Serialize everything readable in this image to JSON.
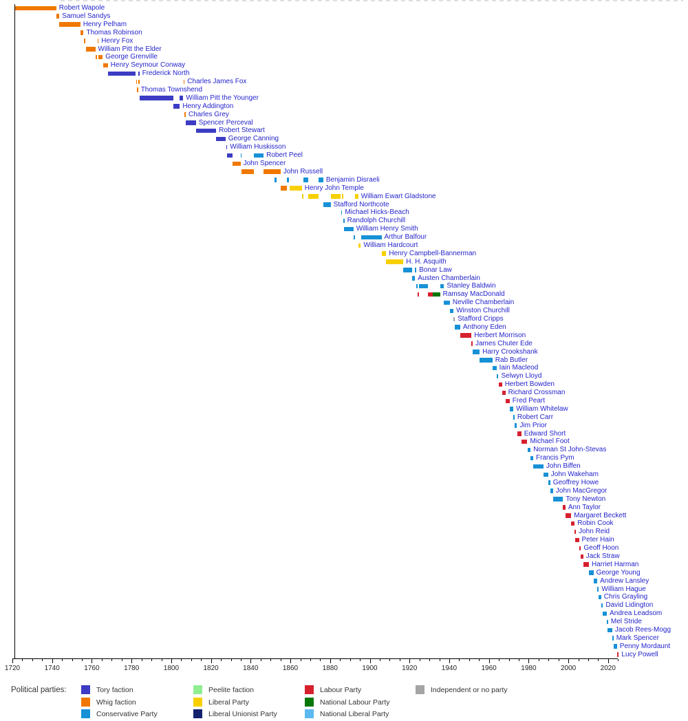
{
  "legend": {
    "title": "Political parties:",
    "columns": [
      [
        "tory",
        "whig",
        "con"
      ],
      [
        "peel",
        "lib",
        "libu"
      ],
      [
        "lab",
        "nlab",
        "nlib"
      ],
      [
        "ind"
      ]
    ]
  },
  "chart_data": {
    "type": "gantt",
    "title": "",
    "x_axis": {
      "start": 1720,
      "end": 2025,
      "minor_step": 5,
      "major_step": 20,
      "tick_labels": [
        "1720",
        "1740",
        "1760",
        "1780",
        "1800",
        "1820",
        "1840",
        "1860",
        "1880",
        "1900",
        "1920",
        "1940",
        "1960",
        "1980",
        "2000",
        "2020"
      ]
    },
    "parties": {
      "tory": {
        "label": "Tory faction",
        "color": "#3C3CC4"
      },
      "whig": {
        "label": "Whig faction",
        "color": "#F07800"
      },
      "con": {
        "label": "Conservative Party",
        "color": "#1791D6"
      },
      "peel": {
        "label": "Peelite faction",
        "color": "#90EE90"
      },
      "lib": {
        "label": "Liberal Party",
        "color": "#F8D000"
      },
      "libu": {
        "label": "Liberal Unionist Party",
        "color": "#14226E"
      },
      "lab": {
        "label": "Labour Party",
        "color": "#D7202E"
      },
      "nlab": {
        "label": "National Labour Party",
        "color": "#067806"
      },
      "nlib": {
        "label": "National Liberal Party",
        "color": "#5CB9F0"
      },
      "ind": {
        "label": "Independent or no party",
        "color": "#A4A4A4"
      }
    },
    "leaders": [
      {
        "name": "Robert Wapole",
        "terms": [
          [
            1721.15,
            1742.1,
            "whig"
          ]
        ]
      },
      {
        "name": "Samuel Sandys",
        "terms": [
          [
            1742.1,
            1743.65,
            "whig"
          ]
        ]
      },
      {
        "name": "Henry Pelham",
        "terms": [
          [
            1743.65,
            1754.2,
            "whig"
          ]
        ]
      },
      {
        "name": "Thomas Robinson",
        "terms": [
          [
            1754.25,
            1755.85,
            "whig"
          ]
        ]
      },
      {
        "name": "Henry Fox",
        "terms": [
          [
            1755.85,
            1756.85,
            "whig"
          ],
          [
            1762.8,
            1763.3,
            "whig"
          ]
        ]
      },
      {
        "name": "William Pitt the Elder",
        "terms": [
          [
            1756.9,
            1761.75,
            "whig"
          ]
        ]
      },
      {
        "name": "George Grenville",
        "terms": [
          [
            1761.8,
            1762.8,
            "whig"
          ],
          [
            1763.3,
            1765.5,
            "whig"
          ]
        ]
      },
      {
        "name": "Henry Seymour Conway",
        "terms": [
          [
            1765.55,
            1768.1,
            "whig"
          ]
        ]
      },
      {
        "name": "Frederick North",
        "terms": [
          [
            1768.1,
            1782.2,
            "tory"
          ],
          [
            1783.3,
            1783.95,
            "tory"
          ]
        ]
      },
      {
        "name": "Charles James Fox",
        "terms": [
          [
            1782.25,
            1782.55,
            "whig"
          ],
          [
            1783.3,
            1783.95,
            "whig"
          ],
          [
            1806.1,
            1806.7,
            "whig"
          ]
        ]
      },
      {
        "name": "Thomas Townshend",
        "terms": [
          [
            1782.55,
            1783.3,
            "whig"
          ]
        ]
      },
      {
        "name": "William Pitt the Younger",
        "terms": [
          [
            1783.95,
            1801.15,
            "tory"
          ],
          [
            1804.35,
            1806.05,
            "tory"
          ]
        ]
      },
      {
        "name": "Henry Addington",
        "terms": [
          [
            1801.15,
            1804.35,
            "tory"
          ]
        ]
      },
      {
        "name": "Charles Grey",
        "terms": [
          [
            1806.7,
            1807.25,
            "whig"
          ]
        ]
      },
      {
        "name": "Spencer Perceval",
        "terms": [
          [
            1807.25,
            1812.4,
            "tory"
          ]
        ]
      },
      {
        "name": "Robert Stewart",
        "terms": [
          [
            1812.4,
            1822.6,
            "tory"
          ]
        ]
      },
      {
        "name": "George Canning",
        "terms": [
          [
            1822.7,
            1827.3,
            "tory"
          ]
        ]
      },
      {
        "name": "William Huskisson",
        "terms": [
          [
            1827.6,
            1828.1,
            "tory"
          ]
        ]
      },
      {
        "name": "Robert Peel",
        "terms": [
          [
            1828.1,
            1830.9,
            "tory"
          ],
          [
            1834.9,
            1835.3,
            "con"
          ],
          [
            1841.65,
            1846.5,
            "con"
          ]
        ]
      },
      {
        "name": "John Spencer",
        "terms": [
          [
            1830.9,
            1834.9,
            "whig"
          ]
        ]
      },
      {
        "name": "John Russell",
        "terms": [
          [
            1835.3,
            1841.65,
            "whig"
          ],
          [
            1846.5,
            1855.1,
            "whig"
          ]
        ]
      },
      {
        "name": "Benjamin Disraeli",
        "terms": [
          [
            1852.15,
            1852.95,
            "con"
          ],
          [
            1858.15,
            1859.45,
            "con"
          ],
          [
            1866.5,
            1868.9,
            "con"
          ],
          [
            1874.15,
            1876.6,
            "con"
          ]
        ]
      },
      {
        "name": "Henry John Temple",
        "terms": [
          [
            1855.1,
            1858.15,
            "whig"
          ],
          [
            1859.45,
            1865.8,
            "lib"
          ]
        ]
      },
      {
        "name": "William Ewart Gladstone",
        "terms": [
          [
            1865.85,
            1866.5,
            "lib"
          ],
          [
            1868.9,
            1874.1,
            "lib"
          ],
          [
            1880.3,
            1885.45,
            "lib"
          ],
          [
            1886.1,
            1886.55,
            "lib"
          ],
          [
            1892.6,
            1894.2,
            "lib"
          ]
        ]
      },
      {
        "name": "Stafford Northcote",
        "terms": [
          [
            1876.6,
            1880.3,
            "con"
          ]
        ]
      },
      {
        "name": "Michael Hicks-Beach",
        "terms": [
          [
            1885.45,
            1886.1,
            "con"
          ]
        ]
      },
      {
        "name": "Randolph Churchill",
        "terms": [
          [
            1886.6,
            1887.0,
            "con"
          ]
        ]
      },
      {
        "name": "William Henry Smith",
        "terms": [
          [
            1887.0,
            1891.75,
            "con"
          ]
        ]
      },
      {
        "name": "Arthur Balfour",
        "terms": [
          [
            1891.8,
            1892.6,
            "con"
          ],
          [
            1895.5,
            1905.9,
            "con"
          ]
        ]
      },
      {
        "name": "William Hardcourt",
        "terms": [
          [
            1894.2,
            1895.5,
            "lib"
          ]
        ]
      },
      {
        "name": "Henry Campbell-Bannerman",
        "terms": [
          [
            1905.9,
            1908.3,
            "lib"
          ]
        ]
      },
      {
        "name": "H. H. Asquith",
        "terms": [
          [
            1908.3,
            1916.9,
            "lib"
          ]
        ]
      },
      {
        "name": "Bonar Law",
        "terms": [
          [
            1916.9,
            1921.2,
            "con"
          ],
          [
            1922.8,
            1923.4,
            "con"
          ]
        ]
      },
      {
        "name": "Austen Chamberlain",
        "terms": [
          [
            1921.2,
            1922.8,
            "con"
          ]
        ]
      },
      {
        "name": "Stanley Baldwin",
        "terms": [
          [
            1923.4,
            1924.05,
            "con"
          ],
          [
            1924.85,
            1929.4,
            "con"
          ],
          [
            1935.4,
            1937.4,
            "con"
          ]
        ]
      },
      {
        "name": "Ramsay MacDonald",
        "terms": [
          [
            1924.05,
            1924.85,
            "lab"
          ],
          [
            1929.4,
            1931.65,
            "lab"
          ],
          [
            1931.65,
            1935.4,
            "nlab"
          ]
        ]
      },
      {
        "name": "Neville Chamberlain",
        "terms": [
          [
            1937.4,
            1940.35,
            "con"
          ]
        ]
      },
      {
        "name": "Winston Churchill",
        "terms": [
          [
            1940.35,
            1942.15,
            "con"
          ]
        ]
      },
      {
        "name": "Stafford Cripps",
        "terms": [
          [
            1942.15,
            1942.85,
            "ind"
          ]
        ]
      },
      {
        "name": "Anthony Eden",
        "terms": [
          [
            1942.85,
            1945.55,
            "con"
          ]
        ]
      },
      {
        "name": "Herbert Morrison",
        "terms": [
          [
            1945.55,
            1951.2,
            "lab"
          ]
        ]
      },
      {
        "name": "James Chuter Ede",
        "terms": [
          [
            1951.2,
            1951.8,
            "lab"
          ]
        ]
      },
      {
        "name": "Harry Crookshank",
        "terms": [
          [
            1951.8,
            1955.3,
            "con"
          ]
        ]
      },
      {
        "name": "Rab Butler",
        "terms": [
          [
            1955.3,
            1961.8,
            "con"
          ]
        ]
      },
      {
        "name": "Iain Macleod",
        "terms": [
          [
            1961.8,
            1963.8,
            "con"
          ]
        ]
      },
      {
        "name": "Selwyn Lloyd",
        "terms": [
          [
            1963.8,
            1964.8,
            "con"
          ]
        ]
      },
      {
        "name": "Herbert Bowden",
        "terms": [
          [
            1964.8,
            1966.6,
            "lab"
          ]
        ]
      },
      {
        "name": "Richard Crossman",
        "terms": [
          [
            1966.6,
            1968.3,
            "lab"
          ]
        ]
      },
      {
        "name": "Fred Peart",
        "terms": [
          [
            1968.3,
            1970.45,
            "lab"
          ]
        ]
      },
      {
        "name": "William Whitelaw",
        "terms": [
          [
            1970.45,
            1972.3,
            "con"
          ]
        ]
      },
      {
        "name": "Robert Carr",
        "terms": [
          [
            1972.3,
            1972.85,
            "con"
          ]
        ]
      },
      {
        "name": "Jim Prior",
        "terms": [
          [
            1972.85,
            1974.15,
            "con"
          ]
        ]
      },
      {
        "name": "Edward Short",
        "terms": [
          [
            1974.15,
            1976.3,
            "lab"
          ]
        ]
      },
      {
        "name": "Michael Foot",
        "terms": [
          [
            1976.3,
            1979.35,
            "lab"
          ]
        ]
      },
      {
        "name": "Norman St John-Stevas",
        "terms": [
          [
            1979.35,
            1981.0,
            "con"
          ]
        ]
      },
      {
        "name": "Francis Pym",
        "terms": [
          [
            1981.0,
            1982.3,
            "con"
          ]
        ]
      },
      {
        "name": "John Biffen",
        "terms": [
          [
            1982.3,
            1987.45,
            "con"
          ]
        ]
      },
      {
        "name": "John Wakeham",
        "terms": [
          [
            1987.45,
            1989.85,
            "con"
          ]
        ]
      },
      {
        "name": "Geoffrey Howe",
        "terms": [
          [
            1989.85,
            1990.85,
            "con"
          ]
        ]
      },
      {
        "name": "John MacGregor",
        "terms": [
          [
            1990.85,
            1992.3,
            "con"
          ]
        ]
      },
      {
        "name": "Tony Newton",
        "terms": [
          [
            1992.3,
            1997.35,
            "con"
          ]
        ]
      },
      {
        "name": "Ann Taylor",
        "terms": [
          [
            1997.35,
            1998.55,
            "lab"
          ]
        ]
      },
      {
        "name": "Margaret Beckett",
        "terms": [
          [
            1998.55,
            2001.45,
            "lab"
          ]
        ]
      },
      {
        "name": "Robin Cook",
        "terms": [
          [
            2001.45,
            2003.2,
            "lab"
          ]
        ]
      },
      {
        "name": "John Reid",
        "terms": [
          [
            2003.2,
            2003.45,
            "lab"
          ]
        ]
      },
      {
        "name": "Peter Hain",
        "terms": [
          [
            2003.45,
            2005.35,
            "lab"
          ]
        ]
      },
      {
        "name": "Geoff Hoon",
        "terms": [
          [
            2005.35,
            2006.35,
            "lab"
          ]
        ]
      },
      {
        "name": "Jack Straw",
        "terms": [
          [
            2006.35,
            2007.5,
            "lab"
          ]
        ]
      },
      {
        "name": "Harriet Harman",
        "terms": [
          [
            2007.5,
            2010.35,
            "lab"
          ]
        ]
      },
      {
        "name": "George Young",
        "terms": [
          [
            2010.35,
            2012.65,
            "con"
          ]
        ]
      },
      {
        "name": "Andrew Lansley",
        "terms": [
          [
            2012.65,
            2014.55,
            "con"
          ]
        ]
      },
      {
        "name": "William Hague",
        "terms": [
          [
            2014.55,
            2015.35,
            "con"
          ]
        ]
      },
      {
        "name": "Chris Grayling",
        "terms": [
          [
            2015.35,
            2016.55,
            "con"
          ]
        ]
      },
      {
        "name": "David Lidington",
        "terms": [
          [
            2016.55,
            2017.45,
            "con"
          ]
        ]
      },
      {
        "name": "Andrea Leadsom",
        "terms": [
          [
            2017.45,
            2019.4,
            "con"
          ]
        ]
      },
      {
        "name": "Mel Stride",
        "terms": [
          [
            2019.4,
            2019.55,
            "con"
          ]
        ]
      },
      {
        "name": "Jacob Rees-Mogg",
        "terms": [
          [
            2019.55,
            2022.1,
            "con"
          ]
        ]
      },
      {
        "name": "Mark Spencer",
        "terms": [
          [
            2022.1,
            2022.7,
            "con"
          ]
        ]
      },
      {
        "name": "Penny Mordaunt",
        "terms": [
          [
            2022.7,
            2024.5,
            "con"
          ]
        ]
      },
      {
        "name": "Lucy Powell",
        "terms": [
          [
            2024.5,
            2025.4,
            "lab"
          ]
        ]
      }
    ]
  }
}
